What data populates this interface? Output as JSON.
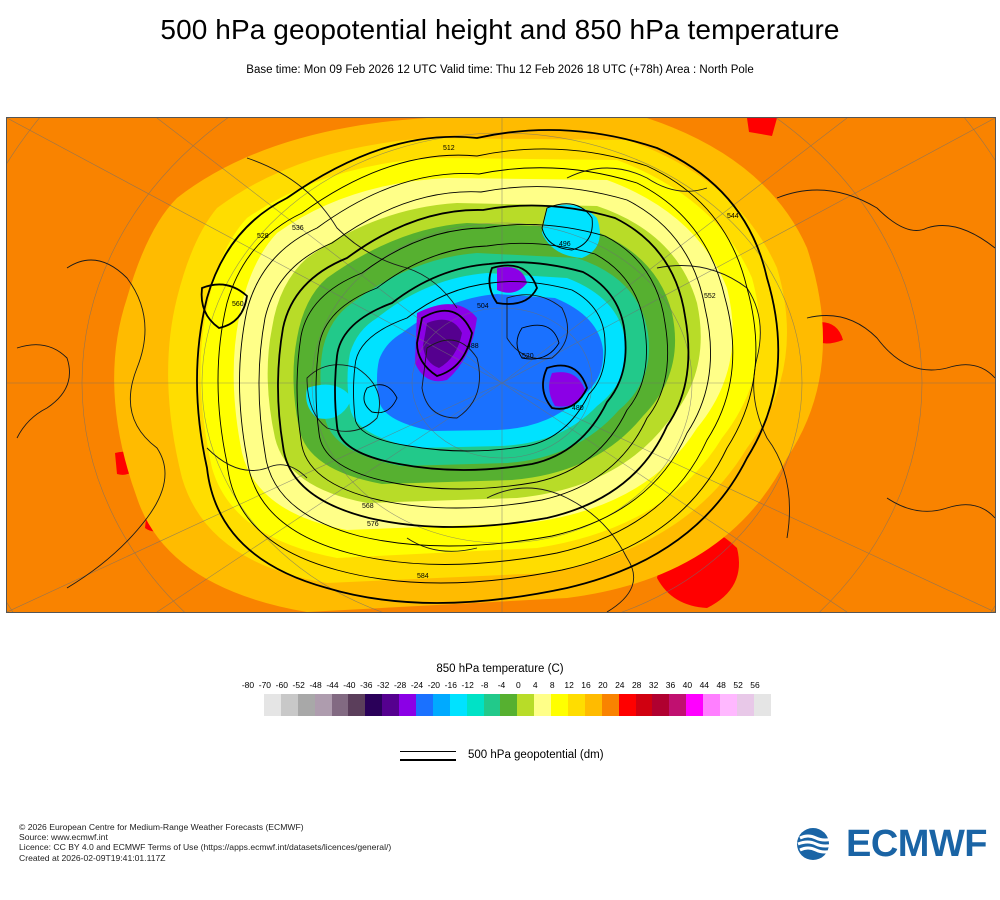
{
  "title": "500 hPa geopotential height and 850 hPa temperature",
  "subtitle": "Base time: Mon 09 Feb 2026 12 UTC Valid time: Thu 12 Feb 2026 18 UTC (+78h) Area : North Pole",
  "map": {
    "projection": "polar stereographic",
    "contour_labels": [
      "512",
      "528",
      "536",
      "544",
      "552",
      "560",
      "568",
      "576",
      "584",
      "496",
      "504",
      "520",
      "488",
      "480"
    ]
  },
  "legend": {
    "title": "850 hPa temperature (C)",
    "ticks": [
      "-80",
      "-70",
      "-60",
      "-52",
      "-48",
      "-44",
      "-40",
      "-36",
      "-32",
      "-28",
      "-24",
      "-20",
      "-16",
      "-12",
      "-8",
      "-4",
      "0",
      "4",
      "8",
      "12",
      "16",
      "20",
      "24",
      "28",
      "32",
      "36",
      "40",
      "44",
      "48",
      "52",
      "56"
    ],
    "colors": [
      "#e5e5e5",
      "#c8c8c8",
      "#a8a8a8",
      "#ae9cae",
      "#826a82",
      "#5b3e5b",
      "#2a0059",
      "#55008f",
      "#8b00e6",
      "#1a71ff",
      "#00aaff",
      "#00e2ff",
      "#00e2c6",
      "#22c98a",
      "#56b030",
      "#b8dc28",
      "#ffff88",
      "#ffff00",
      "#ffdd00",
      "#ffbb00",
      "#f98300",
      "#ff0000",
      "#d00010",
      "#b00030",
      "#c01070",
      "#ff00ff",
      "#ff7fff",
      "#ffb8ff",
      "#e8c8e8",
      "#e5e5e5"
    ]
  },
  "geopotential_legend": {
    "label": "500 hPa geopotential (dm)"
  },
  "footer": {
    "copyright": "© 2026 European Centre for Medium-Range Weather Forecasts (ECMWF)",
    "source": "Source: www.ecmwf.int",
    "licence": "Licence: CC BY 4.0 and ECMWF Terms of Use (https://apps.ecmwf.int/datasets/licences/general/)",
    "created": "Created at 2026-02-09T19:41:01.117Z"
  },
  "logo": {
    "text": "ECMWF",
    "color": "#1a64a5"
  }
}
